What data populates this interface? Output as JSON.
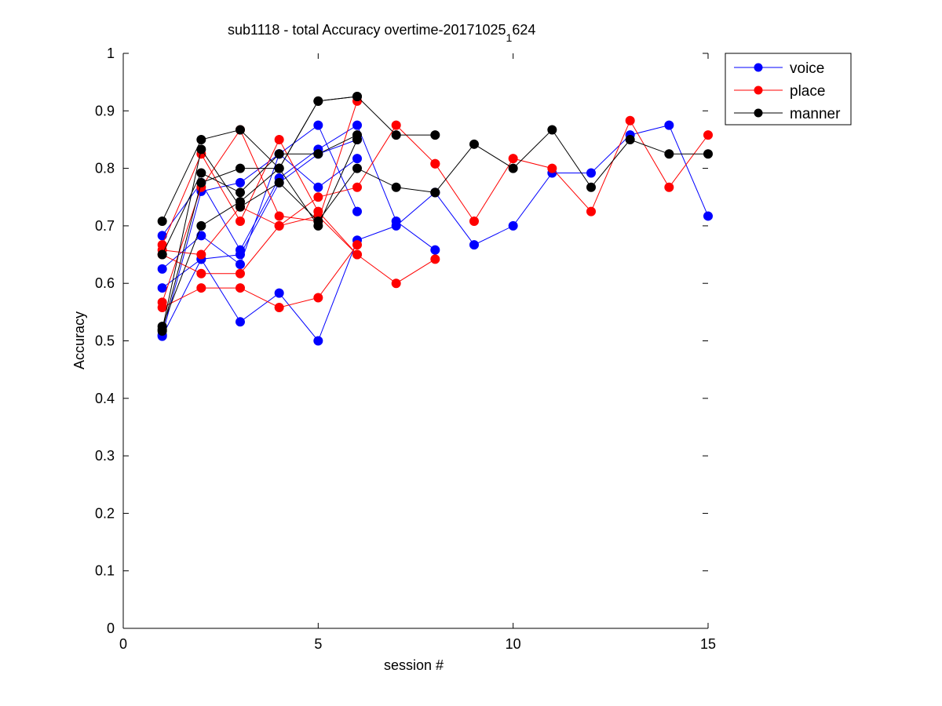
{
  "chart_data": {
    "type": "line",
    "title": {
      "main": "sub1118 - total Accuracy overtime-20171025",
      "subscript": "1",
      "suffix": "624"
    },
    "xlabel": "session #",
    "ylabel": "Accuracy",
    "xlim": [
      0,
      15
    ],
    "ylim": [
      0,
      1
    ],
    "xticks": [
      0,
      5,
      10,
      15
    ],
    "xtick_labels": [
      "0",
      "5",
      "10",
      "15"
    ],
    "yticks": [
      0,
      0.1,
      0.2,
      0.3,
      0.4,
      0.5,
      0.6,
      0.7,
      0.8,
      0.9,
      1
    ],
    "ytick_labels": [
      "0",
      "0.1",
      "0.2",
      "0.3",
      "0.4",
      "0.5",
      "0.6",
      "0.7",
      "0.8",
      "0.9",
      "1"
    ],
    "grid": false,
    "legend_position": "top-right, outside plot",
    "legend": [
      {
        "label": "voice",
        "color": "#0000ff"
      },
      {
        "label": "place",
        "color": "#ff0000"
      },
      {
        "label": "manner",
        "color": "#000000"
      }
    ],
    "series": [
      {
        "name": "voice",
        "color": "#0000ff",
        "x": [
          1,
          2,
          3,
          4,
          5,
          6
        ],
        "y": [
          0.51,
          0.76,
          0.775,
          0.825,
          0.875,
          0.725
        ]
      },
      {
        "name": "voice",
        "color": "#0000ff",
        "x": [
          1,
          2,
          3,
          4,
          5,
          6,
          7,
          8
        ],
        "y": [
          0.592,
          0.642,
          0.533,
          0.583,
          0.5,
          0.675,
          0.7,
          0.758
        ]
      },
      {
        "name": "voice",
        "color": "#0000ff",
        "x": [
          1,
          2,
          3,
          4,
          5,
          6,
          7,
          8
        ],
        "y": [
          0.683,
          0.775,
          0.658,
          0.783,
          0.833,
          0.875,
          0.708,
          0.658
        ]
      },
      {
        "name": "voice",
        "color": "#0000ff",
        "x": [
          1,
          2,
          3,
          4,
          5,
          6
        ],
        "y": [
          0.625,
          0.683,
          0.633,
          0.825,
          0.767,
          0.817
        ]
      },
      {
        "name": "voice",
        "color": "#0000ff",
        "x": [
          1,
          2,
          3,
          4,
          5,
          6
        ],
        "y": [
          0.508,
          0.642,
          0.65,
          0.775,
          0.825,
          0.85
        ]
      },
      {
        "name": "voice",
        "color": "#0000ff",
        "x": [
          8,
          9,
          10,
          11,
          12,
          13,
          14,
          15
        ],
        "y": [
          0.758,
          0.667,
          0.7,
          0.792,
          0.792,
          0.858,
          0.875,
          0.717
        ]
      },
      {
        "name": "place",
        "color": "#ff0000",
        "x": [
          1,
          2,
          3,
          4,
          5,
          6
        ],
        "y": [
          0.567,
          0.767,
          0.867,
          0.717,
          0.708,
          0.917
        ]
      },
      {
        "name": "place",
        "color": "#ff0000",
        "x": [
          1,
          2,
          3,
          4,
          5,
          6
        ],
        "y": [
          0.558,
          0.592,
          0.592,
          0.558,
          0.575,
          0.667
        ]
      },
      {
        "name": "place",
        "color": "#ff0000",
        "x": [
          1,
          2,
          3,
          4,
          5,
          6
        ],
        "y": [
          0.667,
          0.825,
          0.708,
          0.85,
          0.725,
          0.65
        ]
      },
      {
        "name": "place",
        "color": "#ff0000",
        "x": [
          1,
          2,
          3,
          4,
          5,
          6,
          7,
          8
        ],
        "y": [
          0.65,
          0.617,
          0.617,
          0.7,
          0.75,
          0.767,
          0.875,
          0.808
        ]
      },
      {
        "name": "place",
        "color": "#ff0000",
        "x": [
          1,
          2,
          3,
          4,
          5,
          6,
          7,
          8
        ],
        "y": [
          0.658,
          0.65,
          0.733,
          0.7,
          0.717,
          0.65,
          0.6,
          0.642
        ]
      },
      {
        "name": "place",
        "color": "#ff0000",
        "x": [
          8,
          9,
          10,
          11,
          12,
          13,
          14,
          15
        ],
        "y": [
          0.808,
          0.708,
          0.817,
          0.8,
          0.725,
          0.883,
          0.767,
          0.858
        ]
      },
      {
        "name": "manner",
        "color": "#000000",
        "x": [
          1,
          2,
          3,
          4,
          5,
          6
        ],
        "y": [
          0.708,
          0.85,
          0.867,
          0.8,
          0.917,
          0.925
        ]
      },
      {
        "name": "manner",
        "color": "#000000",
        "x": [
          1,
          2,
          3,
          4,
          5,
          6
        ],
        "y": [
          0.525,
          0.7,
          0.742,
          0.8,
          0.7,
          0.85
        ]
      },
      {
        "name": "manner",
        "color": "#000000",
        "x": [
          1,
          2,
          3,
          4,
          5,
          6
        ],
        "y": [
          0.65,
          0.792,
          0.758,
          0.825,
          0.825,
          0.858
        ]
      },
      {
        "name": "manner",
        "color": "#000000",
        "x": [
          1,
          2,
          3,
          4,
          5,
          6,
          7,
          8
        ],
        "y": [
          0.517,
          0.775,
          0.8,
          0.8,
          0.917,
          0.925,
          0.858,
          0.858
        ]
      },
      {
        "name": "manner",
        "color": "#000000",
        "x": [
          1,
          2,
          3,
          4,
          5,
          6,
          7,
          8
        ],
        "y": [
          0.52,
          0.833,
          0.733,
          0.775,
          0.708,
          0.8,
          0.767,
          0.758
        ]
      },
      {
        "name": "manner",
        "color": "#000000",
        "x": [
          8,
          9,
          10,
          11,
          12,
          13,
          14,
          15
        ],
        "y": [
          0.758,
          0.842,
          0.8,
          0.867,
          0.767,
          0.85,
          0.825,
          0.825
        ]
      }
    ]
  }
}
